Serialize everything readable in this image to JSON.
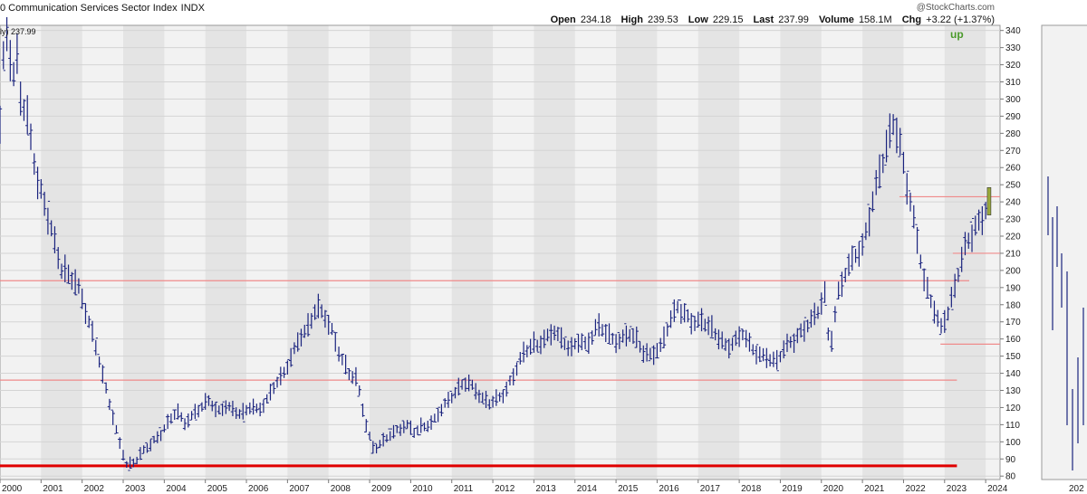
{
  "header": {
    "title": "0 Communication Services Sector Index",
    "symbol": "INDX",
    "watermark": "@StockCharts.com",
    "quote": {
      "open_label": "Open",
      "open": "234.18",
      "high_label": "High",
      "high": "239.53",
      "low_label": "Low",
      "low": "229.15",
      "last_label": "Last",
      "last": "237.99",
      "volume_label": "Volume",
      "volume": "158.1M",
      "chg_label": "Chg",
      "chg": "+3.22 (+1.37%)"
    },
    "last_value_label": "ly) 237.99",
    "signal": "up"
  },
  "chart_data": {
    "type": "line",
    "subtype": "ohlc-bar",
    "title": "",
    "xlabel": "",
    "ylabel": "",
    "ylim": [
      78,
      343
    ],
    "y_ticks": [
      80,
      90,
      100,
      110,
      120,
      130,
      140,
      150,
      160,
      170,
      180,
      190,
      200,
      210,
      220,
      230,
      240,
      250,
      260,
      270,
      280,
      290,
      300,
      310,
      320,
      330,
      340
    ],
    "x_ticks": [
      "2000",
      "2001",
      "2002",
      "2003",
      "2004",
      "2005",
      "2006",
      "2007",
      "2008",
      "2009",
      "2010",
      "2011",
      "2012",
      "2013",
      "2014",
      "2015",
      "2016",
      "2017",
      "2018",
      "2019",
      "2020",
      "2021",
      "2022",
      "2023",
      "2024"
    ],
    "xlim": [
      2000.0,
      2024.35
    ],
    "grid": true,
    "bar_color": "#1a237e",
    "last_bar_color": "#9aa93a",
    "price_path": [
      [
        2000.0,
        285
      ],
      [
        2000.1,
        330
      ],
      [
        2000.2,
        340
      ],
      [
        2000.3,
        305
      ],
      [
        2000.4,
        325
      ],
      [
        2000.5,
        300
      ],
      [
        2000.7,
        285
      ],
      [
        2000.9,
        255
      ],
      [
        2001.1,
        240
      ],
      [
        2001.3,
        220
      ],
      [
        2001.5,
        200
      ],
      [
        2001.7,
        195
      ],
      [
        2001.9,
        190
      ],
      [
        2002.1,
        175
      ],
      [
        2002.3,
        160
      ],
      [
        2002.5,
        140
      ],
      [
        2002.7,
        120
      ],
      [
        2002.9,
        100
      ],
      [
        2003.1,
        85
      ],
      [
        2003.3,
        88
      ],
      [
        2003.5,
        95
      ],
      [
        2003.7,
        100
      ],
      [
        2003.9,
        105
      ],
      [
        2004.1,
        112
      ],
      [
        2004.3,
        118
      ],
      [
        2004.5,
        110
      ],
      [
        2004.7,
        115
      ],
      [
        2004.9,
        120
      ],
      [
        2005.1,
        125
      ],
      [
        2005.3,
        118
      ],
      [
        2005.5,
        122
      ],
      [
        2005.7,
        118
      ],
      [
        2005.9,
        115
      ],
      [
        2006.1,
        120
      ],
      [
        2006.3,
        118
      ],
      [
        2006.5,
        125
      ],
      [
        2006.7,
        135
      ],
      [
        2006.9,
        140
      ],
      [
        2007.1,
        150
      ],
      [
        2007.3,
        160
      ],
      [
        2007.5,
        165
      ],
      [
        2007.7,
        178
      ],
      [
        2007.9,
        175
      ],
      [
        2008.1,
        165
      ],
      [
        2008.3,
        150
      ],
      [
        2008.5,
        140
      ],
      [
        2008.7,
        135
      ],
      [
        2008.9,
        110
      ],
      [
        2009.1,
        95
      ],
      [
        2009.3,
        100
      ],
      [
        2009.5,
        105
      ],
      [
        2009.7,
        108
      ],
      [
        2009.9,
        110
      ],
      [
        2010.1,
        105
      ],
      [
        2010.3,
        108
      ],
      [
        2010.5,
        110
      ],
      [
        2010.7,
        118
      ],
      [
        2010.9,
        125
      ],
      [
        2011.1,
        130
      ],
      [
        2011.3,
        135
      ],
      [
        2011.5,
        132
      ],
      [
        2011.7,
        125
      ],
      [
        2011.9,
        122
      ],
      [
        2012.1,
        125
      ],
      [
        2012.3,
        130
      ],
      [
        2012.5,
        140
      ],
      [
        2012.7,
        150
      ],
      [
        2012.9,
        155
      ],
      [
        2013.1,
        155
      ],
      [
        2013.3,
        160
      ],
      [
        2013.5,
        165
      ],
      [
        2013.7,
        160
      ],
      [
        2013.9,
        155
      ],
      [
        2014.1,
        160
      ],
      [
        2014.3,
        155
      ],
      [
        2014.5,
        165
      ],
      [
        2014.7,
        165
      ],
      [
        2014.9,
        160
      ],
      [
        2015.1,
        160
      ],
      [
        2015.3,
        165
      ],
      [
        2015.5,
        160
      ],
      [
        2015.7,
        150
      ],
      [
        2015.9,
        150
      ],
      [
        2016.1,
        155
      ],
      [
        2016.3,
        170
      ],
      [
        2016.5,
        180
      ],
      [
        2016.7,
        175
      ],
      [
        2016.9,
        170
      ],
      [
        2017.1,
        170
      ],
      [
        2017.3,
        165
      ],
      [
        2017.5,
        160
      ],
      [
        2017.7,
        155
      ],
      [
        2017.9,
        160
      ],
      [
        2018.1,
        165
      ],
      [
        2018.3,
        155
      ],
      [
        2018.5,
        150
      ],
      [
        2018.7,
        148
      ],
      [
        2018.9,
        145
      ],
      [
        2019.1,
        155
      ],
      [
        2019.3,
        160
      ],
      [
        2019.5,
        165
      ],
      [
        2019.7,
        170
      ],
      [
        2019.9,
        175
      ],
      [
        2020.1,
        185
      ],
      [
        2020.2,
        150
      ],
      [
        2020.4,
        185
      ],
      [
        2020.6,
        200
      ],
      [
        2020.8,
        210
      ],
      [
        2021.0,
        215
      ],
      [
        2021.2,
        235
      ],
      [
        2021.4,
        255
      ],
      [
        2021.6,
        270
      ],
      [
        2021.75,
        285
      ],
      [
        2021.9,
        275
      ],
      [
        2022.1,
        250
      ],
      [
        2022.3,
        225
      ],
      [
        2022.5,
        195
      ],
      [
        2022.7,
        180
      ],
      [
        2022.9,
        165
      ],
      [
        2023.1,
        175
      ],
      [
        2023.3,
        195
      ],
      [
        2023.5,
        215
      ],
      [
        2023.7,
        225
      ],
      [
        2023.9,
        232
      ],
      [
        2024.05,
        238
      ]
    ],
    "levels": [
      {
        "y": 243,
        "x_start": 2021.9,
        "x_end": 2024.35,
        "color": "#ef8a8a",
        "width": 1.2
      },
      {
        "y": 210,
        "x_start": 2023.2,
        "x_end": 2024.35,
        "color": "#ef8a8a",
        "width": 1.2
      },
      {
        "y": 194,
        "x_start": 2000.0,
        "x_end": 2023.6,
        "color": "#ef8a8a",
        "width": 1.2
      },
      {
        "y": 157,
        "x_start": 2022.9,
        "x_end": 2024.35,
        "color": "#ef8a8a",
        "width": 1.2
      },
      {
        "y": 136,
        "x_start": 2000.0,
        "x_end": 2023.3,
        "color": "#ef8a8a",
        "width": 1.2
      },
      {
        "y": 86,
        "x_start": 2000.0,
        "x_end": 2023.3,
        "color": "#e00000",
        "width": 3
      }
    ]
  },
  "side_panel": {
    "x_tick": "202"
  }
}
